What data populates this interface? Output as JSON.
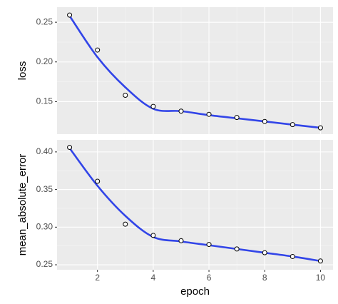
{
  "chart_data": [
    {
      "type": "line",
      "ylabel": "loss",
      "x": [
        1,
        2,
        3,
        4,
        5,
        6,
        7,
        8,
        9,
        10
      ],
      "series": [
        {
          "name": "points",
          "color": "#000000",
          "values": [
            0.259,
            0.215,
            0.158,
            0.144,
            0.138,
            0.134,
            0.13,
            0.125,
            0.121,
            0.117
          ]
        },
        {
          "name": "smooth",
          "color": "#3245e8",
          "values": [
            0.258,
            0.206,
            0.168,
            0.141,
            0.138,
            0.133,
            0.129,
            0.125,
            0.121,
            0.117
          ]
        }
      ],
      "xlim": [
        0.55,
        10.45
      ],
      "xticks": [
        2,
        4,
        6,
        8,
        10
      ],
      "ylim": [
        0.109,
        0.269
      ],
      "yticks": [
        0.15,
        {
          "value": 0.2,
          "label": "0.20"
        },
        0.25
      ],
      "grid": true
    },
    {
      "type": "line",
      "ylabel": "mean_absolute_error",
      "xlabel": "epoch",
      "x": [
        1,
        2,
        3,
        4,
        5,
        6,
        7,
        8,
        9,
        10
      ],
      "series": [
        {
          "name": "points",
          "color": "#000000",
          "values": [
            0.406,
            0.361,
            0.304,
            0.289,
            0.282,
            0.277,
            0.271,
            0.266,
            0.261,
            0.255
          ]
        },
        {
          "name": "smooth",
          "color": "#3245e8",
          "values": [
            0.405,
            0.355,
            0.315,
            0.287,
            0.281,
            0.276,
            0.271,
            0.266,
            0.261,
            0.255
          ]
        }
      ],
      "xlim": [
        0.55,
        10.45
      ],
      "xticks": [
        2,
        4,
        6,
        8,
        10
      ],
      "ylim": [
        0.2434,
        0.416
      ],
      "yticks": [
        0.25,
        {
          "value": 0.3,
          "label": "0.30"
        },
        0.35,
        {
          "value": 0.4,
          "label": "0.40"
        }
      ],
      "grid": true
    }
  ]
}
